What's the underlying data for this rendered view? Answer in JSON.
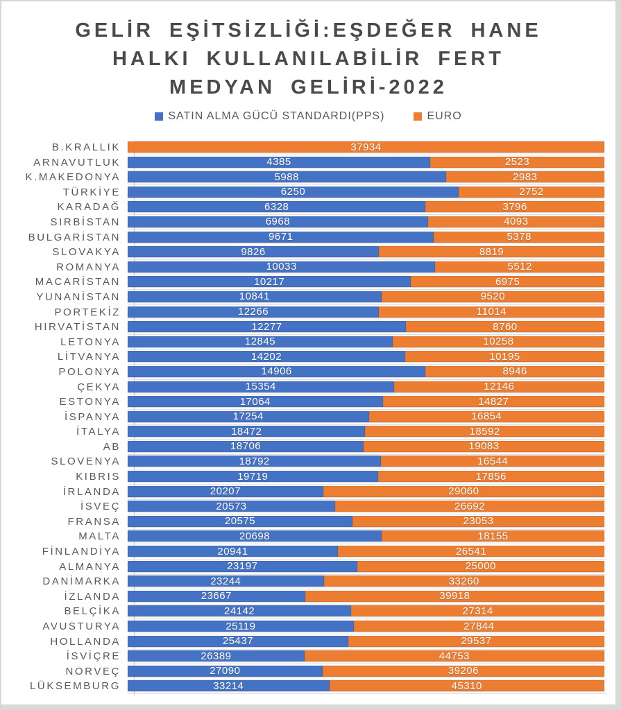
{
  "title": {
    "lines": [
      "GELİR EŞİTSİZLİĞİ:EŞDEĞER HANE",
      "HALKI KULLANILABİLİR FERT",
      "MEDYAN GELİRİ-2022"
    ]
  },
  "legend": {
    "items": [
      {
        "label": "SATIN ALMA GÜCÜ STANDARDI(PPS)",
        "color": "#4472C4"
      },
      {
        "label": "EURO",
        "color": "#ED7D31"
      }
    ]
  },
  "chart_data": {
    "type": "bar",
    "subtype": "horizontal-100pct-stacked",
    "title": "GELİR EŞİTSİZLİĞİ:EŞDEĞER HANE HALKI KULLANILABİLİR FERT MEDYAN GELİRİ-2022",
    "legend_position": "top",
    "grid": false,
    "series_names": [
      "SATIN ALMA GÜCÜ STANDARDI(PPS)",
      "EURO"
    ],
    "colors": {
      "pps": "#4472C4",
      "euro": "#ED7D31"
    },
    "rows": [
      {
        "label": "B.KRALLIK",
        "pps": null,
        "euro": 37934
      },
      {
        "label": "ARNAVUTLUK",
        "pps": 4385,
        "euro": 2523
      },
      {
        "label": "K.MAKEDONYA",
        "pps": 5988,
        "euro": 2983
      },
      {
        "label": "TÜRKİYE",
        "pps": 6250,
        "euro": 2752
      },
      {
        "label": "KARADAĞ",
        "pps": 6328,
        "euro": 3796
      },
      {
        "label": "SIRBİSTAN",
        "pps": 6968,
        "euro": 4093
      },
      {
        "label": "BULGARİSTAN",
        "pps": 9671,
        "euro": 5378
      },
      {
        "label": "SLOVAKYA",
        "pps": 9826,
        "euro": 8819
      },
      {
        "label": "ROMANYA",
        "pps": 10033,
        "euro": 5512
      },
      {
        "label": "MACARİSTAN",
        "pps": 10217,
        "euro": 6975
      },
      {
        "label": "YUNANİSTAN",
        "pps": 10841,
        "euro": 9520
      },
      {
        "label": "PORTEKİZ",
        "pps": 12266,
        "euro": 11014
      },
      {
        "label": "HIRVATİSTAN",
        "pps": 12277,
        "euro": 8760
      },
      {
        "label": "LETONYA",
        "pps": 12845,
        "euro": 10258
      },
      {
        "label": "LİTVANYA",
        "pps": 14202,
        "euro": 10195
      },
      {
        "label": "POLONYA",
        "pps": 14906,
        "euro": 8946
      },
      {
        "label": "ÇEKYA",
        "pps": 15354,
        "euro": 12146
      },
      {
        "label": "ESTONYA",
        "pps": 17064,
        "euro": 14827
      },
      {
        "label": "İSPANYA",
        "pps": 17254,
        "euro": 16854
      },
      {
        "label": "İTALYA",
        "pps": 18472,
        "euro": 18592
      },
      {
        "label": "AB",
        "pps": 18706,
        "euro": 19083
      },
      {
        "label": "SLOVENYA",
        "pps": 18792,
        "euro": 16544
      },
      {
        "label": "KIBRIS",
        "pps": 19719,
        "euro": 17856
      },
      {
        "label": "İRLANDA",
        "pps": 20207,
        "euro": 29060
      },
      {
        "label": "İSVEÇ",
        "pps": 20573,
        "euro": 26692
      },
      {
        "label": "FRANSA",
        "pps": 20575,
        "euro": 23053
      },
      {
        "label": "MALTA",
        "pps": 20698,
        "euro": 18155
      },
      {
        "label": "FİNLANDİYA",
        "pps": 20941,
        "euro": 26541
      },
      {
        "label": "ALMANYA",
        "pps": 23197,
        "euro": 25000
      },
      {
        "label": "DANİMARKA",
        "pps": 23244,
        "euro": 33260
      },
      {
        "label": "İZLANDA",
        "pps": 23667,
        "euro": 39918
      },
      {
        "label": "BELÇİKA",
        "pps": 24142,
        "euro": 27314
      },
      {
        "label": "AVUSTURYA",
        "pps": 25119,
        "euro": 27844
      },
      {
        "label": "HOLLANDA",
        "pps": 25437,
        "euro": 29537
      },
      {
        "label": "İSVİÇRE",
        "pps": 26389,
        "euro": 44753
      },
      {
        "label": "NORVEÇ",
        "pps": 27090,
        "euro": 39206
      },
      {
        "label": "LÜKSEMBURG",
        "pps": 33214,
        "euro": 45310
      }
    ]
  }
}
